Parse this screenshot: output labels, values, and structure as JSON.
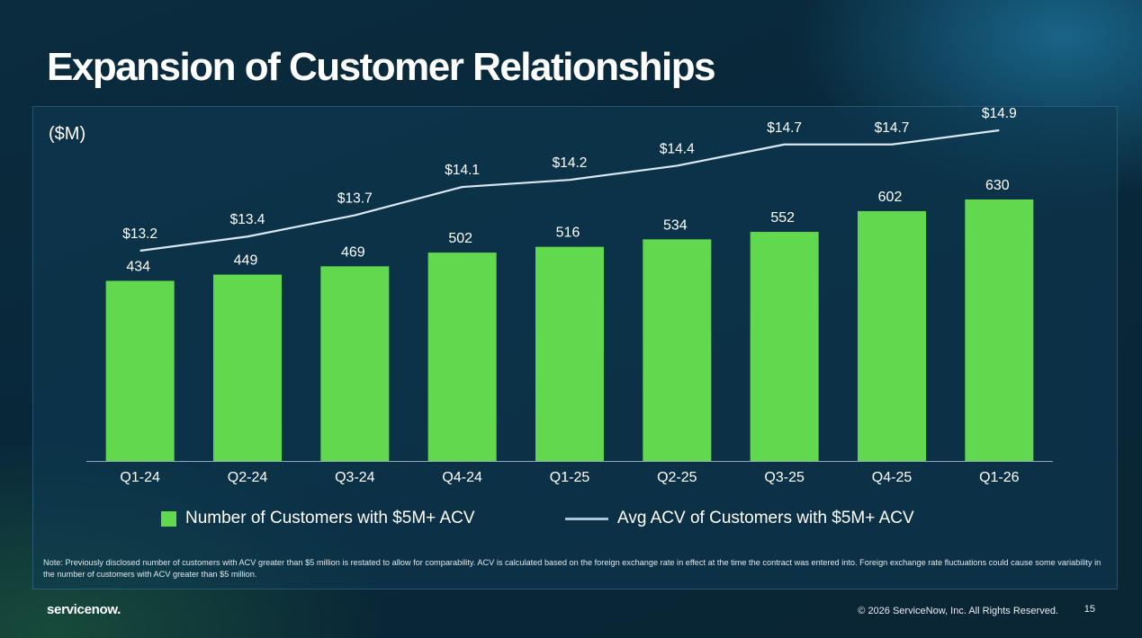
{
  "slide": {
    "title": "Expansion of Customer Relationships",
    "unit_label": "($M)",
    "note": "Note: Previously disclosed number of customers with ACV greater than $5 million is restated to allow for comparability. ACV is calculated based on the foreign exchange rate in effect at the time the contract was entered into. Foreign exchange rate fluctuations could cause some variability in the number of customers with ACV greater than $5 million.",
    "logo_text": "servicenow.",
    "copyright": "© 2026 ServiceNow, Inc. All Rights Reserved.",
    "page_number": "15"
  },
  "colors": {
    "bar": "#62d84e",
    "line": "#d9e8f0",
    "legend_line": "#a9c6d6",
    "axis": "#8fa9b8"
  },
  "chart_data": {
    "type": "bar",
    "categories": [
      "Q1-24",
      "Q2-24",
      "Q3-24",
      "Q4-24",
      "Q1-25",
      "Q2-25",
      "Q3-25",
      "Q4-25",
      "Q1-26"
    ],
    "series": [
      {
        "name": "Number of Customers with $5M+ ACV",
        "type": "bar",
        "values": [
          434,
          449,
          469,
          502,
          516,
          534,
          552,
          602,
          630
        ],
        "labels": [
          "434",
          "449",
          "469",
          "502",
          "516",
          "534",
          "552",
          "602",
          "630"
        ]
      },
      {
        "name": "Avg ACV of Customers with $5M+ ACV",
        "type": "line",
        "values": [
          13.2,
          13.4,
          13.7,
          14.1,
          14.2,
          14.4,
          14.7,
          14.7,
          14.9
        ],
        "labels": [
          "$13.2",
          "$13.4",
          "$13.7",
          "$14.1",
          "$14.2",
          "$14.4",
          "$14.7",
          "$14.7",
          "$14.9"
        ]
      }
    ],
    "legend_position": "bottom",
    "grid": false
  }
}
